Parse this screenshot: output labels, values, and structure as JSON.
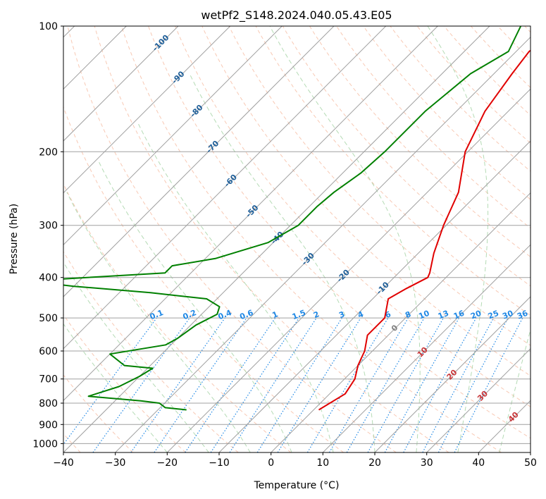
{
  "chart_data": {
    "type": "line",
    "title": "wetPf2_S148.2024.040.05.43.E05",
    "xlabel": "Temperature (°C)",
    "ylabel": "Pressure (hPa)",
    "xlim": [
      -40,
      50
    ],
    "ylim": [
      1050,
      100
    ],
    "y_scale": "log",
    "x_ticks": [
      -40,
      -30,
      -20,
      -10,
      0,
      10,
      20,
      30,
      40,
      50
    ],
    "y_ticks": [
      100,
      200,
      300,
      400,
      500,
      600,
      700,
      800,
      900,
      1000
    ],
    "grid": true,
    "colors": {
      "temperature": "#e00000",
      "dewpoint": "#008000",
      "isotherm": "#a0a0a0",
      "dry_adiabat": "#f4a582",
      "moist_adiabat": "#9ccf9c",
      "mixing_ratio": "#1f88e5",
      "isotherm_label": "#1f5f99",
      "dry_label": "#c8373a",
      "zero_label": "#808080"
    },
    "isotherm_labels": [
      "-100",
      "-90",
      "-80",
      "-70",
      "-60",
      "-50",
      "-40",
      "-30",
      "-20",
      "-10",
      "0",
      "10",
      "20",
      "30",
      "40"
    ],
    "mixing_ratio_labels": [
      "0.1",
      "0.2",
      "0.4",
      "0.6",
      "1",
      "1.5",
      "2",
      "3",
      "4",
      "6",
      "8",
      "10",
      "13",
      "16",
      "20",
      "25",
      "30",
      "36"
    ],
    "series": [
      {
        "key": "temperature",
        "points": [
          [
            -25.3,
            100
          ],
          [
            -27.5,
            115
          ],
          [
            -26.5,
            130
          ],
          [
            -24.5,
            160
          ],
          [
            -20.5,
            200
          ],
          [
            -14.0,
            250
          ],
          [
            -10.5,
            300
          ],
          [
            -7.0,
            350
          ],
          [
            -4.0,
            390
          ],
          [
            -3.5,
            400
          ],
          [
            -5.5,
            425
          ],
          [
            -7.0,
            450
          ],
          [
            -4.0,
            500
          ],
          [
            -4.0,
            550
          ],
          [
            -1.5,
            600
          ],
          [
            0.0,
            650
          ],
          [
            2.0,
            700
          ],
          [
            3.0,
            760
          ],
          [
            1.0,
            830
          ]
        ]
      },
      {
        "key": "dewpoint",
        "points": [
          [
            -34.0,
            100
          ],
          [
            -31.5,
            115
          ],
          [
            -34.5,
            130
          ],
          [
            -36.0,
            160
          ],
          [
            -36.0,
            200
          ],
          [
            -36.5,
            225
          ],
          [
            -38.0,
            250
          ],
          [
            -38.5,
            270
          ],
          [
            -38.5,
            300
          ],
          [
            -41.0,
            330
          ],
          [
            -48.0,
            360
          ],
          [
            -55.0,
            375
          ],
          [
            -55.0,
            390
          ],
          [
            -80.0,
            408
          ],
          [
            -70.0,
            420
          ],
          [
            -54.0,
            435
          ],
          [
            -42.0,
            450
          ],
          [
            -38.0,
            470
          ],
          [
            -37.0,
            490
          ],
          [
            -39.0,
            520
          ],
          [
            -40.0,
            560
          ],
          [
            -41.0,
            580
          ],
          [
            -50.0,
            610
          ],
          [
            -45.0,
            650
          ],
          [
            -39.0,
            660
          ],
          [
            -40.0,
            690
          ],
          [
            -42.0,
            730
          ],
          [
            -46.0,
            770
          ],
          [
            -35.0,
            790
          ],
          [
            -31.0,
            800
          ],
          [
            -29.0,
            820
          ],
          [
            -24.5,
            830
          ]
        ]
      }
    ]
  }
}
